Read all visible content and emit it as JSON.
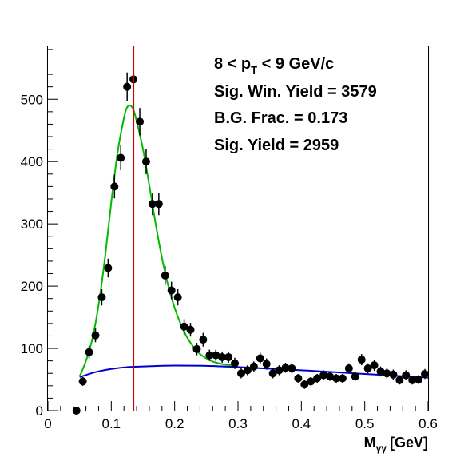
{
  "chart_data": {
    "type": "scatter",
    "title": "",
    "xlabel": "M",
    "xlabel_sub": "γγ",
    "xlabel_unit": "[GeV]",
    "ylabel": "",
    "xlim": [
      0,
      0.6
    ],
    "ylim": [
      0,
      585
    ],
    "x_ticks": [
      0,
      0.1,
      0.2,
      0.3,
      0.4,
      0.5,
      0.6
    ],
    "x_tick_labels": [
      "0",
      "0.1",
      "0.2",
      "0.3",
      "0.4",
      "0.5",
      "0.6"
    ],
    "y_ticks": [
      0,
      100,
      200,
      300,
      400,
      500
    ],
    "y_tick_labels": [
      "0",
      "100",
      "200",
      "300",
      "400",
      "500"
    ],
    "grid": false,
    "annotations": {
      "pt_pre": "8 < p",
      "pt_sub": "T",
      "pt_post": " < 9 GeV/c",
      "sig_win": "Sig. Win. Yield = 3579",
      "bg_frac": "B.G. Frac. = 0.173",
      "sig_yield": "Sig. Yield = 2959"
    },
    "vertical_line": {
      "x": 0.135,
      "color": "#cc0000"
    },
    "colors": {
      "points": "#000000",
      "signal_fit": "#00bb00",
      "background_fit": "#0000cc",
      "vertical_line": "#cc0000"
    },
    "series": [
      {
        "type": "points",
        "x": [
          0.045,
          0.055,
          0.065,
          0.075,
          0.085,
          0.095,
          0.105,
          0.115,
          0.125,
          0.135,
          0.145,
          0.155,
          0.165,
          0.175,
          0.185,
          0.195,
          0.205,
          0.215,
          0.225,
          0.235,
          0.245,
          0.255,
          0.265,
          0.275,
          0.285,
          0.295,
          0.305,
          0.315,
          0.325,
          0.335,
          0.345,
          0.355,
          0.365,
          0.375,
          0.385,
          0.395,
          0.405,
          0.415,
          0.425,
          0.435,
          0.445,
          0.455,
          0.465,
          0.475,
          0.485,
          0.495,
          0.505,
          0.515,
          0.525,
          0.535,
          0.545,
          0.555,
          0.565,
          0.575,
          0.585,
          0.595
        ],
        "y": [
          0,
          47,
          94,
          121,
          182,
          229,
          360,
          406,
          520,
          532,
          464,
          400,
          332,
          332,
          217,
          193,
          182,
          135,
          130,
          99,
          114,
          89,
          89,
          86,
          86,
          76,
          60,
          65,
          71,
          84,
          75,
          60,
          65,
          69,
          68,
          52,
          42,
          47,
          52,
          57,
          55,
          52,
          52,
          68,
          55,
          82,
          68,
          73,
          63,
          60,
          58,
          49,
          57,
          49,
          50,
          59
        ],
        "yerr": [
          0,
          7,
          10,
          11,
          13,
          15,
          19,
          20,
          23,
          23,
          22,
          20,
          18,
          18,
          15,
          14,
          13,
          12,
          11,
          10,
          11,
          9,
          9,
          9,
          9,
          9,
          8,
          8,
          8,
          9,
          9,
          8,
          8,
          8,
          8,
          7,
          7,
          7,
          7,
          8,
          7,
          7,
          7,
          8,
          7,
          9,
          8,
          9,
          8,
          8,
          8,
          7,
          8,
          7,
          7,
          8
        ]
      },
      {
        "type": "curve",
        "role": "signal_plus_background",
        "color": "#00bb00",
        "x": [
          0.05,
          0.06,
          0.07,
          0.08,
          0.09,
          0.1,
          0.11,
          0.12,
          0.125,
          0.13,
          0.135,
          0.14,
          0.15,
          0.16,
          0.17,
          0.18,
          0.19,
          0.2,
          0.21,
          0.22,
          0.23,
          0.24,
          0.25,
          0.26,
          0.27,
          0.28,
          0.29
        ],
        "y": [
          55,
          80,
          115,
          170,
          245,
          335,
          415,
          470,
          487,
          490,
          483,
          465,
          420,
          362,
          300,
          245,
          200,
          165,
          138,
          117,
          102,
          91,
          84,
          79,
          76,
          74,
          73
        ]
      },
      {
        "type": "curve",
        "role": "background",
        "color": "#0000cc",
        "x": [
          0.05,
          0.075,
          0.1,
          0.125,
          0.15,
          0.175,
          0.2,
          0.25,
          0.3,
          0.35,
          0.4,
          0.45,
          0.5,
          0.55,
          0.6
        ],
        "y": [
          54,
          62,
          67,
          70,
          71,
          72,
          72.5,
          72,
          70,
          67.5,
          65,
          62,
          59,
          56,
          53
        ]
      }
    ]
  }
}
